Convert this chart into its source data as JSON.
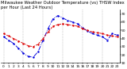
{
  "title": "Milwaukee Weather Outdoor Temperature (vs) THSW Index per Hour (Last 24 Hours)",
  "hours": [
    0,
    1,
    2,
    3,
    4,
    5,
    6,
    7,
    8,
    9,
    10,
    11,
    12,
    13,
    14,
    15,
    16,
    17,
    18,
    19,
    20,
    21,
    22,
    23
  ],
  "temp": [
    46,
    43,
    40,
    37,
    34,
    31,
    30,
    33,
    40,
    48,
    55,
    57,
    58,
    57,
    56,
    55,
    52,
    50,
    48,
    47,
    46,
    44,
    43,
    42
  ],
  "thsw": [
    42,
    38,
    34,
    28,
    22,
    18,
    17,
    24,
    38,
    52,
    64,
    68,
    65,
    62,
    60,
    58,
    53,
    49,
    46,
    44,
    42,
    38,
    46,
    44
  ],
  "temp_color": "#dd0000",
  "thsw_color": "#0000dd",
  "bg_color": "#ffffff",
  "grid_color": "#999999",
  "ylim": [
    10,
    75
  ],
  "ytick_labels": [
    "10",
    "20",
    "30",
    "40",
    "50",
    "60",
    "70"
  ],
  "ytick_vals": [
    10,
    20,
    30,
    40,
    50,
    60,
    70
  ],
  "grid_hours": [
    0,
    4,
    8,
    12,
    16,
    20
  ],
  "title_fontsize": 3.8,
  "tick_fontsize": 3.2,
  "linewidth": 0.65,
  "markersize": 1.5
}
